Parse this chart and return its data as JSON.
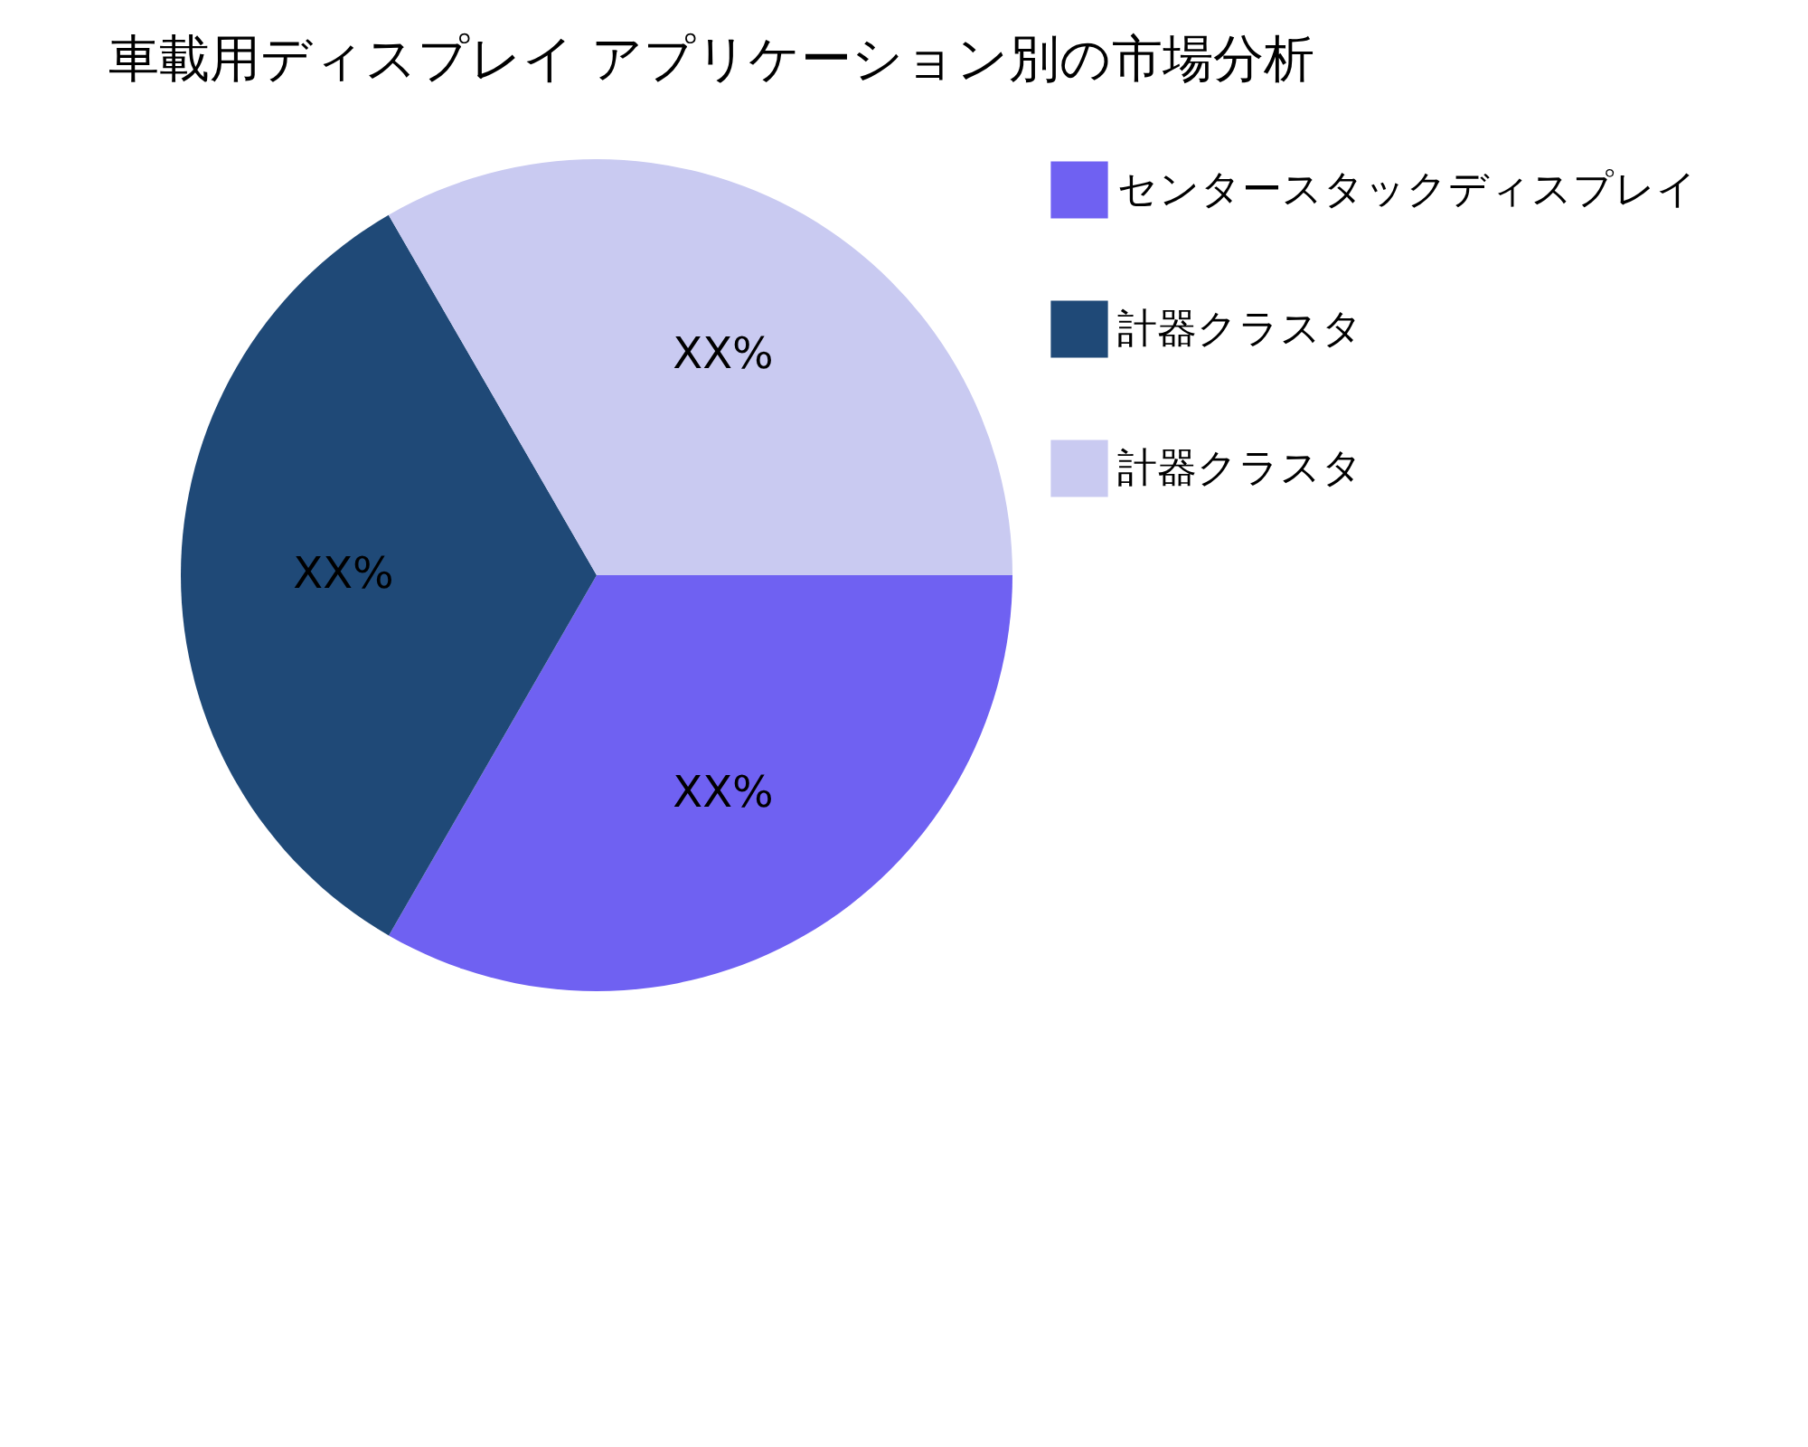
{
  "chart_data": {
    "type": "pie",
    "title": "車載用ディスプレイ アプリケーション別の市場分析",
    "categories": [
      "センタースタックディスプレイ",
      "計器クラスタ",
      "計器クラスタ"
    ],
    "values": [
      33.33,
      33.33,
      33.34
    ],
    "colors": [
      "#6f61f2",
      "#1f4977",
      "#c9caf1"
    ],
    "value_labels": [
      "XX%",
      "XX%",
      "XX%"
    ],
    "legend": "top right"
  }
}
